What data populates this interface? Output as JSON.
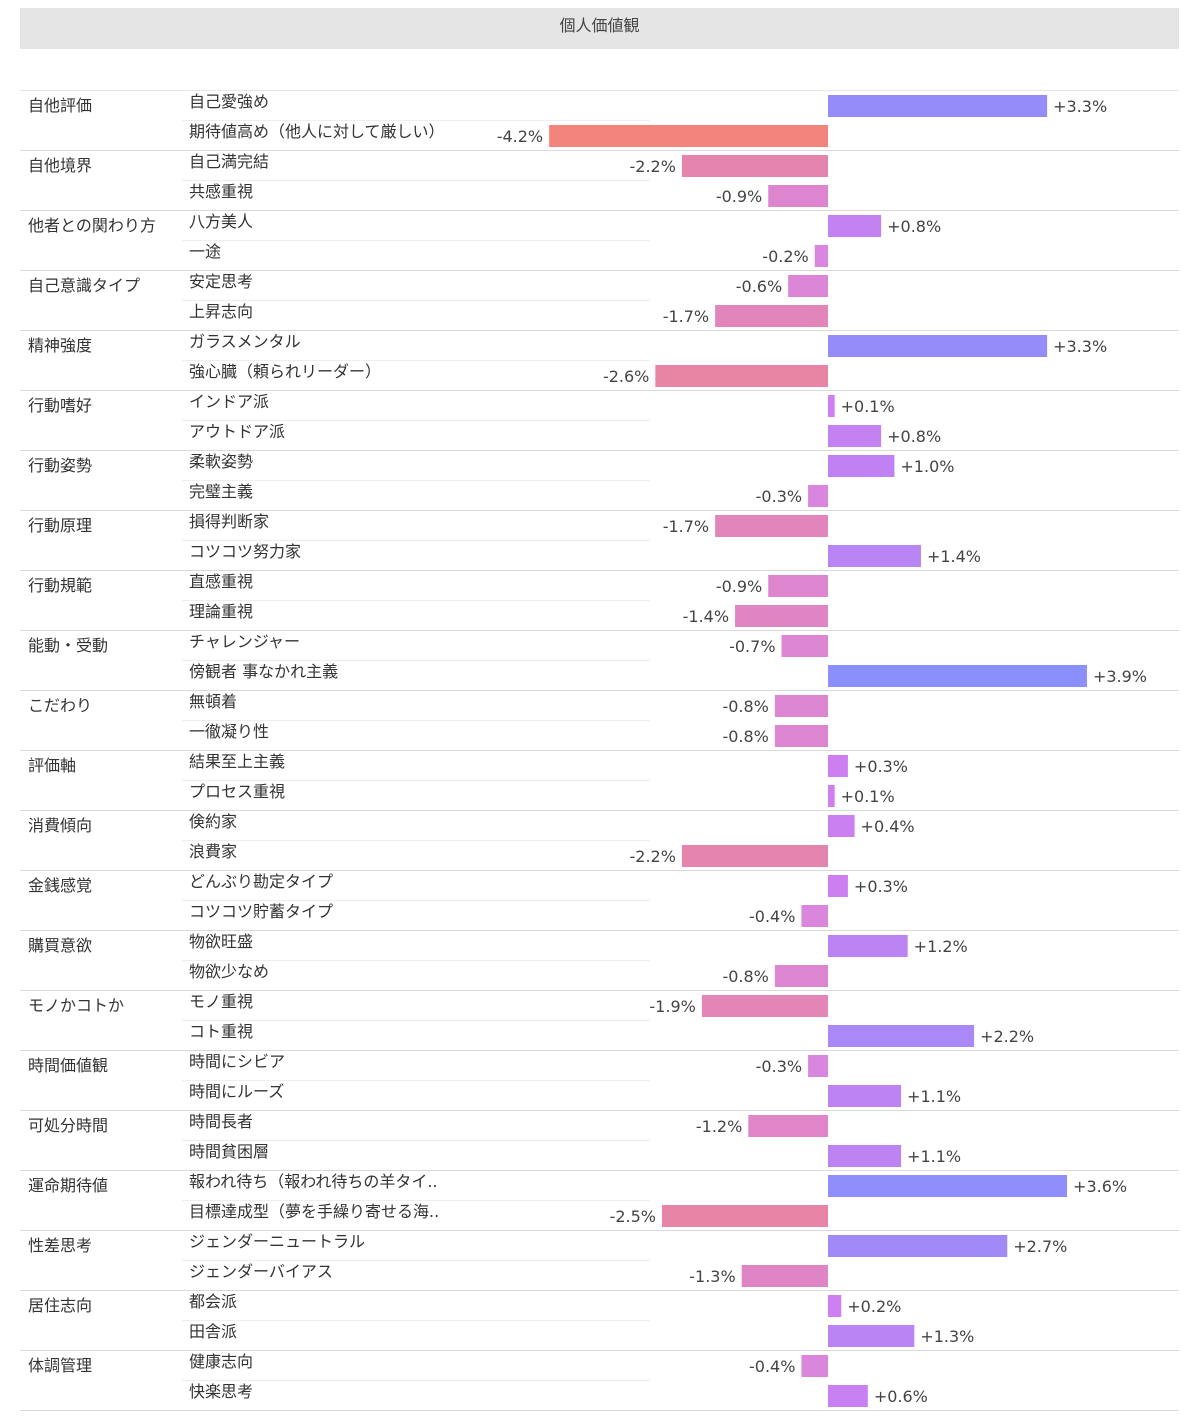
{
  "header": {
    "title": "個人価値観"
  },
  "chart_data": {
    "type": "bar",
    "orientation": "horizontal",
    "title": "個人価値観",
    "unit": "%",
    "xlim": [
      -4.2,
      3.9
    ],
    "colors": {
      "positive_max": "#8b8ffb",
      "positive_min": "#d27ef0",
      "negative_min": "#d786e6",
      "negative_max": "#f2847c"
    },
    "groups": [
      {
        "category": "自他評価",
        "items": [
          {
            "label": "自己愛強め",
            "value": 3.3,
            "value_label": "+3.3%"
          },
          {
            "label": "期待値高め（他人に対して厳しい）",
            "value": -4.2,
            "value_label": "-4.2%"
          }
        ]
      },
      {
        "category": "自他境界",
        "items": [
          {
            "label": "自己満完結",
            "value": -2.2,
            "value_label": "-2.2%"
          },
          {
            "label": "共感重視",
            "value": -0.9,
            "value_label": "-0.9%"
          }
        ]
      },
      {
        "category": "他者との関わり方",
        "items": [
          {
            "label": "八方美人",
            "value": 0.8,
            "value_label": "+0.8%"
          },
          {
            "label": "一途",
            "value": -0.2,
            "value_label": "-0.2%"
          }
        ]
      },
      {
        "category": "自己意識タイプ",
        "items": [
          {
            "label": "安定思考",
            "value": -0.6,
            "value_label": "-0.6%"
          },
          {
            "label": "上昇志向",
            "value": -1.7,
            "value_label": "-1.7%"
          }
        ]
      },
      {
        "category": "精神強度",
        "items": [
          {
            "label": "ガラスメンタル",
            "value": 3.3,
            "value_label": "+3.3%"
          },
          {
            "label": "強心臓（頼られリーダー）",
            "value": -2.6,
            "value_label": "-2.6%"
          }
        ]
      },
      {
        "category": "行動嗜好",
        "items": [
          {
            "label": "インドア派",
            "value": 0.1,
            "value_label": "+0.1%"
          },
          {
            "label": "アウトドア派",
            "value": 0.8,
            "value_label": "+0.8%"
          }
        ]
      },
      {
        "category": "行動姿勢",
        "items": [
          {
            "label": "柔軟姿勢",
            "value": 1.0,
            "value_label": "+1.0%"
          },
          {
            "label": "完璧主義",
            "value": -0.3,
            "value_label": "-0.3%"
          }
        ]
      },
      {
        "category": "行動原理",
        "items": [
          {
            "label": "損得判断家",
            "value": -1.7,
            "value_label": "-1.7%"
          },
          {
            "label": "コツコツ努力家",
            "value": 1.4,
            "value_label": "+1.4%"
          }
        ]
      },
      {
        "category": "行動規範",
        "items": [
          {
            "label": "直感重視",
            "value": -0.9,
            "value_label": "-0.9%"
          },
          {
            "label": "理論重視",
            "value": -1.4,
            "value_label": "-1.4%"
          }
        ]
      },
      {
        "category": "能動・受動",
        "items": [
          {
            "label": "チャレンジャー",
            "value": -0.7,
            "value_label": "-0.7%"
          },
          {
            "label": "傍観者 事なかれ主義",
            "value": 3.9,
            "value_label": "+3.9%"
          }
        ]
      },
      {
        "category": "こだわり",
        "items": [
          {
            "label": "無頓着",
            "value": -0.8,
            "value_label": "-0.8%"
          },
          {
            "label": "一徹凝り性",
            "value": -0.8,
            "value_label": "-0.8%"
          }
        ]
      },
      {
        "category": "評価軸",
        "items": [
          {
            "label": "結果至上主義",
            "value": 0.3,
            "value_label": "+0.3%"
          },
          {
            "label": "プロセス重視",
            "value": 0.1,
            "value_label": "+0.1%"
          }
        ]
      },
      {
        "category": "消費傾向",
        "items": [
          {
            "label": "倹約家",
            "value": 0.4,
            "value_label": "+0.4%"
          },
          {
            "label": "浪費家",
            "value": -2.2,
            "value_label": "-2.2%"
          }
        ]
      },
      {
        "category": "金銭感覚",
        "items": [
          {
            "label": "どんぶり勘定タイプ",
            "value": 0.3,
            "value_label": "+0.3%"
          },
          {
            "label": "コツコツ貯蓄タイプ",
            "value": -0.4,
            "value_label": "-0.4%"
          }
        ]
      },
      {
        "category": "購買意欲",
        "items": [
          {
            "label": "物欲旺盛",
            "value": 1.2,
            "value_label": "+1.2%"
          },
          {
            "label": "物欲少なめ",
            "value": -0.8,
            "value_label": "-0.8%"
          }
        ]
      },
      {
        "category": "モノかコトか",
        "items": [
          {
            "label": "モノ重視",
            "value": -1.9,
            "value_label": "-1.9%"
          },
          {
            "label": "コト重視",
            "value": 2.2,
            "value_label": "+2.2%"
          }
        ]
      },
      {
        "category": "時間価値観",
        "items": [
          {
            "label": "時間にシビア",
            "value": -0.3,
            "value_label": "-0.3%"
          },
          {
            "label": "時間にルーズ",
            "value": 1.1,
            "value_label": "+1.1%"
          }
        ]
      },
      {
        "category": "可処分時間",
        "items": [
          {
            "label": "時間長者",
            "value": -1.2,
            "value_label": "-1.2%"
          },
          {
            "label": "時間貧困層",
            "value": 1.1,
            "value_label": "+1.1%"
          }
        ]
      },
      {
        "category": "運命期待値",
        "items": [
          {
            "label": "報われ待ち（報われ待ちの羊タイ..",
            "value": 3.6,
            "value_label": "+3.6%"
          },
          {
            "label": "目標達成型（夢を手繰り寄せる海..",
            "value": -2.5,
            "value_label": "-2.5%"
          }
        ]
      },
      {
        "category": "性差思考",
        "items": [
          {
            "label": "ジェンダーニュートラル",
            "value": 2.7,
            "value_label": "+2.7%"
          },
          {
            "label": "ジェンダーバイアス",
            "value": -1.3,
            "value_label": "-1.3%"
          }
        ]
      },
      {
        "category": "居住志向",
        "items": [
          {
            "label": "都会派",
            "value": 0.2,
            "value_label": "+0.2%"
          },
          {
            "label": "田舎派",
            "value": 1.3,
            "value_label": "+1.3%"
          }
        ]
      },
      {
        "category": "体調管理",
        "items": [
          {
            "label": "健康志向",
            "value": -0.4,
            "value_label": "-0.4%"
          },
          {
            "label": "快楽思考",
            "value": 0.6,
            "value_label": "+0.6%"
          }
        ]
      }
    ]
  }
}
